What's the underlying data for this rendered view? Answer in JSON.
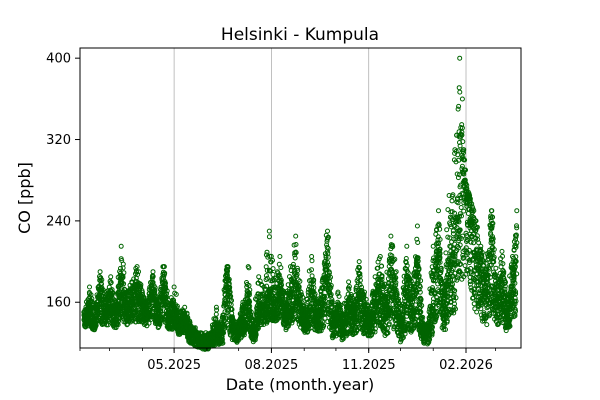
{
  "chart_data": {
    "type": "scatter",
    "title": "Helsinki - Kumpula",
    "xlabel": "Date (month.year)",
    "ylabel": "CO [ppb]",
    "x_major_ticks": [
      "05.2025",
      "08.2025",
      "11.2025",
      "02.2026"
    ],
    "x_major_tick_dates": [
      "2025-05-01",
      "2025-08-01",
      "2025-11-01",
      "2026-02-01"
    ],
    "xlim": [
      "2025-02-01",
      "2026-03-25"
    ],
    "ylim": [
      115,
      410
    ],
    "yticks": [
      160,
      240,
      320,
      400
    ],
    "grid": "vertical lines at major x ticks",
    "marker": "open circle",
    "color": "#006400",
    "series": [
      {
        "x": [
          "2025-02-05",
          "2025-02-10",
          "2025-02-15",
          "2025-02-20",
          "2025-02-25",
          "2025-03-02",
          "2025-03-07",
          "2025-03-12",
          "2025-03-17",
          "2025-03-22",
          "2025-03-27",
          "2025-04-01",
          "2025-04-06",
          "2025-04-11",
          "2025-04-16",
          "2025-04-21",
          "2025-04-26",
          "2025-05-01",
          "2025-05-06",
          "2025-05-11",
          "2025-05-16",
          "2025-05-21",
          "2025-05-26",
          "2025-05-31",
          "2025-06-05",
          "2025-06-10",
          "2025-06-15",
          "2025-06-20",
          "2025-06-25",
          "2025-06-30",
          "2025-07-05",
          "2025-07-10",
          "2025-07-15",
          "2025-07-20",
          "2025-07-25",
          "2025-07-30",
          "2025-08-04",
          "2025-08-09",
          "2025-08-14",
          "2025-08-19",
          "2025-08-24",
          "2025-08-29",
          "2025-09-03",
          "2025-09-08",
          "2025-09-13",
          "2025-09-18",
          "2025-09-23",
          "2025-09-28",
          "2025-10-03",
          "2025-10-08",
          "2025-10-13",
          "2025-10-18",
          "2025-10-23",
          "2025-10-28",
          "2025-11-02",
          "2025-11-07",
          "2025-11-12",
          "2025-11-17",
          "2025-11-22",
          "2025-11-27",
          "2025-12-02",
          "2025-12-07",
          "2025-12-12",
          "2025-12-17",
          "2025-12-22",
          "2025-12-27",
          "2026-01-01",
          "2026-01-06",
          "2026-01-11",
          "2026-01-16",
          "2026-01-21",
          "2026-01-26",
          "2026-01-31",
          "2026-02-05",
          "2026-02-10",
          "2026-02-15",
          "2026-02-20",
          "2026-02-25",
          "2026-03-02",
          "2026-03-07",
          "2026-03-12",
          "2026-03-17",
          "2026-03-21"
        ],
        "y": [
          140,
          150,
          135,
          165,
          145,
          158,
          142,
          170,
          148,
          155,
          162,
          150,
          145,
          168,
          140,
          175,
          138,
          150,
          135,
          140,
          128,
          125,
          120,
          118,
          122,
          130,
          125,
          190,
          135,
          128,
          140,
          155,
          125,
          150,
          148,
          160,
          150,
          165,
          142,
          155,
          170,
          145,
          138,
          160,
          140,
          150,
          190,
          135,
          145,
          130,
          150,
          140,
          160,
          145,
          135,
          150,
          165,
          140,
          175,
          150,
          130,
          170,
          145,
          180,
          130,
          125,
          160,
          200,
          145,
          175,
          190,
          255,
          270,
          230,
          200,
          180,
          160,
          210,
          150,
          175,
          140,
          165,
          200
        ],
        "y_low": [
          132,
          135,
          130,
          135,
          133,
          135,
          132,
          140,
          135,
          138,
          135,
          136,
          133,
          140,
          130,
          138,
          130,
          130,
          126,
          127,
          118,
          115,
          112,
          112,
          114,
          116,
          116,
          125,
          120,
          118,
          122,
          130,
          118,
          135,
          135,
          138,
          138,
          140,
          130,
          135,
          140,
          132,
          125,
          130,
          128,
          128,
          130,
          122,
          125,
          120,
          125,
          122,
          128,
          125,
          122,
          125,
          130,
          122,
          128,
          125,
          118,
          125,
          125,
          130,
          118,
          116,
          125,
          140,
          125,
          135,
          140,
          160,
          165,
          150,
          140,
          135,
          132,
          140,
          130,
          135,
          128,
          132,
          138
        ],
        "y_high": [
          150,
          175,
          155,
          190,
          165,
          185,
          160,
          215,
          168,
          180,
          195,
          170,
          160,
          190,
          150,
          195,
          150,
          175,
          150,
          155,
          140,
          135,
          130,
          130,
          130,
          155,
          140,
          195,
          145,
          138,
          160,
          195,
          135,
          185,
          175,
          230,
          175,
          205,
          160,
          195,
          225,
          170,
          155,
          205,
          160,
          180,
          230,
          150,
          170,
          145,
          180,
          160,
          200,
          170,
          150,
          185,
          205,
          165,
          225,
          190,
          145,
          215,
          170,
          235,
          140,
          135,
          215,
          250,
          165,
          265,
          300,
          400,
          280,
          260,
          240,
          215,
          190,
          250,
          175,
          210,
          160,
          205,
          250
        ]
      }
    ]
  }
}
